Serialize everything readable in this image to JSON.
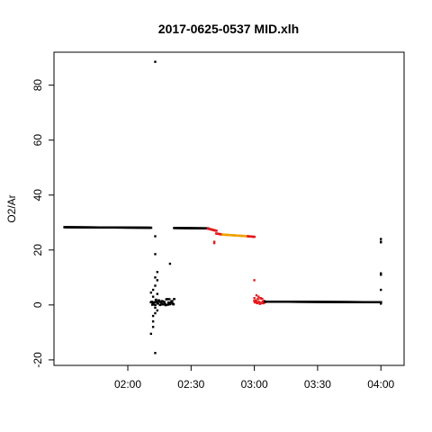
{
  "chart_data": {
    "type": "scatter",
    "title": "2017-0625-0537 MID.xlh",
    "xlabel": "",
    "ylabel": "O2/Ar",
    "x_unit": "time (HH:MM)",
    "xlim": [
      "01:25",
      "04:11"
    ],
    "ylim": [
      -22,
      92
    ],
    "x_ticks": [
      "02:00",
      "02:30",
      "03:00",
      "03:30",
      "04:00"
    ],
    "y_ticks": [
      -20,
      0,
      20,
      40,
      60,
      80
    ],
    "grid": false,
    "legend": "none",
    "colors": {
      "black": "#000000",
      "red": "#e41a1c",
      "orange": "#f0a000"
    },
    "segments": [
      {
        "x_start": "01:30",
        "x_end": "02:11",
        "y_start": 28.3,
        "y_end": 28.1,
        "color": "black"
      },
      {
        "x_start": "02:11",
        "x_end": "02:22",
        "y_start": 1.0,
        "y_end": 1.0,
        "color": "black",
        "scatter": true
      },
      {
        "x_start": "02:22",
        "x_end": "02:38",
        "y_start": 28.0,
        "y_end": 27.9,
        "color": "black"
      },
      {
        "x_start": "02:38",
        "x_end": "02:42",
        "y_start": 27.8,
        "y_end": 27.0,
        "color": "red"
      },
      {
        "x_start": "02:42",
        "x_end": "02:45",
        "y_start": 26.0,
        "y_end": 25.6,
        "color": "red"
      },
      {
        "x_start": "02:45",
        "x_end": "02:57",
        "y_start": 25.6,
        "y_end": 25.0,
        "color": "orange"
      },
      {
        "x_start": "02:57",
        "x_end": "03:00",
        "y_start": 25.0,
        "y_end": 24.8,
        "color": "red"
      },
      {
        "x_start": "03:00",
        "x_end": "03:05",
        "y_start": 1.6,
        "y_end": 1.2,
        "color": "red",
        "scatter": true
      },
      {
        "x_start": "03:05",
        "x_end": "04:00",
        "y_start": 1.2,
        "y_end": 1.0,
        "color": "black"
      }
    ],
    "points": [
      {
        "x": "02:13",
        "y": 88.5,
        "color": "black"
      },
      {
        "x": "02:13",
        "y": 25.0,
        "color": "black"
      },
      {
        "x": "02:13",
        "y": 18.5,
        "color": "black"
      },
      {
        "x": "02:14",
        "y": 12.0,
        "color": "black"
      },
      {
        "x": "02:13",
        "y": 10.0,
        "color": "black"
      },
      {
        "x": "02:14",
        "y": 9.0,
        "color": "black"
      },
      {
        "x": "02:13",
        "y": 7.0,
        "color": "black"
      },
      {
        "x": "02:12",
        "y": 5.5,
        "color": "black"
      },
      {
        "x": "02:11",
        "y": 4.5,
        "color": "black"
      },
      {
        "x": "02:14",
        "y": 4.0,
        "color": "black"
      },
      {
        "x": "02:12",
        "y": 3.0,
        "color": "black"
      },
      {
        "x": "02:13",
        "y": -1.0,
        "color": "black"
      },
      {
        "x": "02:14",
        "y": -2.0,
        "color": "black"
      },
      {
        "x": "02:13",
        "y": -3.0,
        "color": "black"
      },
      {
        "x": "02:12",
        "y": -4.0,
        "color": "black"
      },
      {
        "x": "02:12",
        "y": -6.0,
        "color": "black"
      },
      {
        "x": "02:11",
        "y": -10.5,
        "color": "black"
      },
      {
        "x": "02:12",
        "y": -8.0,
        "color": "black"
      },
      {
        "x": "02:13",
        "y": -17.5,
        "color": "black"
      },
      {
        "x": "02:20",
        "y": 15.0,
        "color": "black"
      },
      {
        "x": "02:41",
        "y": 23.0,
        "color": "red"
      },
      {
        "x": "02:41",
        "y": 22.5,
        "color": "red"
      },
      {
        "x": "03:00",
        "y": 9.0,
        "color": "red"
      },
      {
        "x": "03:01",
        "y": 3.5,
        "color": "red"
      },
      {
        "x": "03:00",
        "y": 2.5,
        "color": "red"
      },
      {
        "x": "03:02",
        "y": 3.0,
        "color": "red"
      },
      {
        "x": "03:03",
        "y": 2.5,
        "color": "red"
      },
      {
        "x": "04:00",
        "y": 24.0,
        "color": "black"
      },
      {
        "x": "04:00",
        "y": 23.0,
        "color": "black"
      },
      {
        "x": "04:00",
        "y": 22.8,
        "color": "black"
      },
      {
        "x": "04:00",
        "y": 11.5,
        "color": "black"
      },
      {
        "x": "04:00",
        "y": 11.0,
        "color": "black"
      },
      {
        "x": "04:00",
        "y": 5.5,
        "color": "black"
      },
      {
        "x": "04:00",
        "y": 0.5,
        "color": "black"
      }
    ]
  }
}
